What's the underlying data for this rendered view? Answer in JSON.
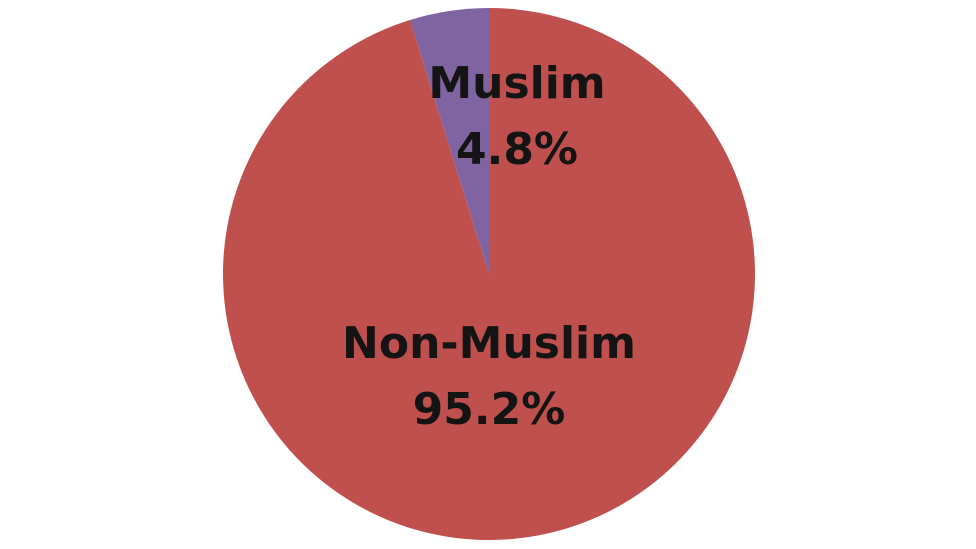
{
  "chart_data": {
    "type": "pie",
    "slices": [
      {
        "label": "Muslim",
        "value": 4.8,
        "value_label": "4.8%",
        "color": "#8064a2"
      },
      {
        "label": "Non-Muslim",
        "value": 95.2,
        "value_label": "95.2%",
        "color": "#c0504d"
      }
    ],
    "start_angle_deg": 0,
    "direction": "counterclockwise",
    "legend": "none"
  }
}
